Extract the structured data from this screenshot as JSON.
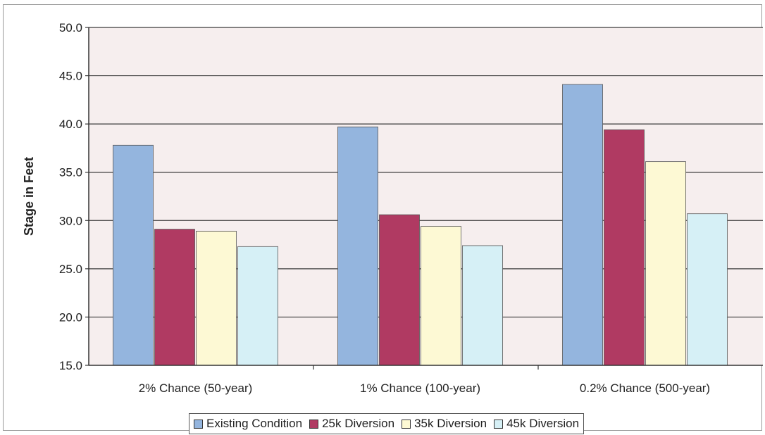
{
  "chart_data": {
    "type": "bar",
    "title": "",
    "xlabel": "",
    "ylabel": "Stage in Feet",
    "ylim": [
      15,
      50
    ],
    "yticks": [
      "15.0",
      "20.0",
      "25.0",
      "30.0",
      "35.0",
      "40.0",
      "45.0",
      "50.0"
    ],
    "grid": true,
    "legend_position": "bottom",
    "categories": [
      "2% Chance (50-year)",
      "1% Chance (100-year)",
      "0.2% Chance (500-year)"
    ],
    "series": [
      {
        "name": "Existing Condition",
        "color": "#94b5de",
        "values": [
          37.8,
          39.7,
          44.1
        ]
      },
      {
        "name": "25k Diversion",
        "color": "#b03a62",
        "values": [
          29.1,
          30.6,
          39.4
        ]
      },
      {
        "name": "35k Diversion",
        "color": "#fdf9d4",
        "values": [
          28.9,
          29.4,
          36.1
        ]
      },
      {
        "name": "45k Diversion",
        "color": "#d6f0f6",
        "values": [
          27.3,
          27.4,
          30.7
        ]
      }
    ]
  }
}
